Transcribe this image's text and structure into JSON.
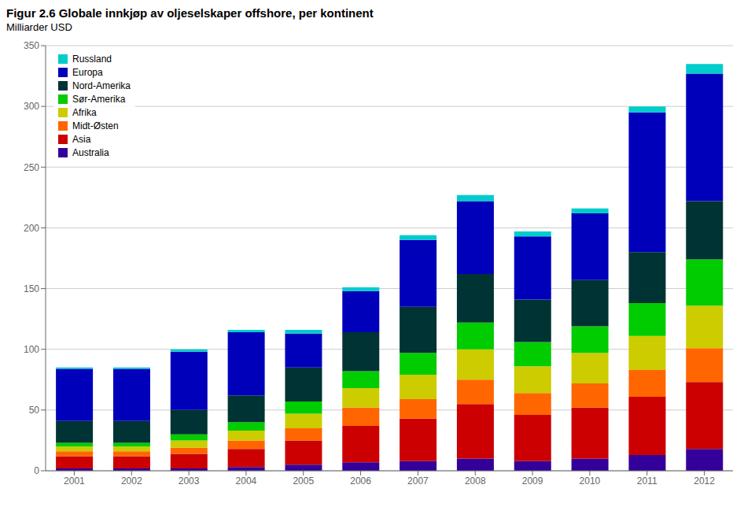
{
  "chart_data": {
    "type": "bar",
    "stacked": true,
    "title": "Figur 2.6 Globale innkjøp av oljeselskaper offshore, per kontinent",
    "subtitle": "Milliarder USD",
    "categories": [
      "2001",
      "2002",
      "2003",
      "2004",
      "2005",
      "2006",
      "2007",
      "2008",
      "2009",
      "2010",
      "2011",
      "2012"
    ],
    "series": [
      {
        "name": "Australia",
        "color": "#330099",
        "values": [
          2,
          2,
          2,
          3,
          5,
          7,
          8,
          10,
          8,
          10,
          13,
          18
        ]
      },
      {
        "name": "Asia",
        "color": "#CC0000",
        "values": [
          10,
          10,
          12,
          15,
          20,
          30,
          35,
          45,
          38,
          42,
          48,
          55
        ]
      },
      {
        "name": "Midt-Østen",
        "color": "#FF6600",
        "values": [
          4,
          4,
          5,
          7,
          10,
          15,
          16,
          20,
          18,
          20,
          22,
          28
        ]
      },
      {
        "name": "Afrika",
        "color": "#CCCC00",
        "values": [
          4,
          4,
          6,
          8,
          12,
          16,
          20,
          25,
          22,
          25,
          28,
          35
        ]
      },
      {
        "name": "Sør-Amerika",
        "color": "#00CC00",
        "values": [
          3,
          3,
          5,
          7,
          10,
          14,
          18,
          22,
          20,
          22,
          27,
          38
        ]
      },
      {
        "name": "Nord-Amerika",
        "color": "#003333",
        "values": [
          18,
          18,
          20,
          22,
          28,
          32,
          38,
          40,
          35,
          38,
          42,
          48
        ]
      },
      {
        "name": "Europa",
        "color": "#0000BB",
        "values": [
          43,
          43,
          48,
          52,
          28,
          34,
          55,
          60,
          52,
          55,
          115,
          105
        ]
      },
      {
        "name": "Russland",
        "color": "#00CCCC",
        "values": [
          1,
          1,
          2,
          2,
          3,
          3,
          4,
          5,
          4,
          4,
          5,
          8
        ]
      }
    ],
    "ylim": [
      0,
      350
    ],
    "yticks": [
      0,
      50,
      100,
      150,
      200,
      250,
      300,
      350
    ],
    "grid": true,
    "legend": "upper left"
  }
}
